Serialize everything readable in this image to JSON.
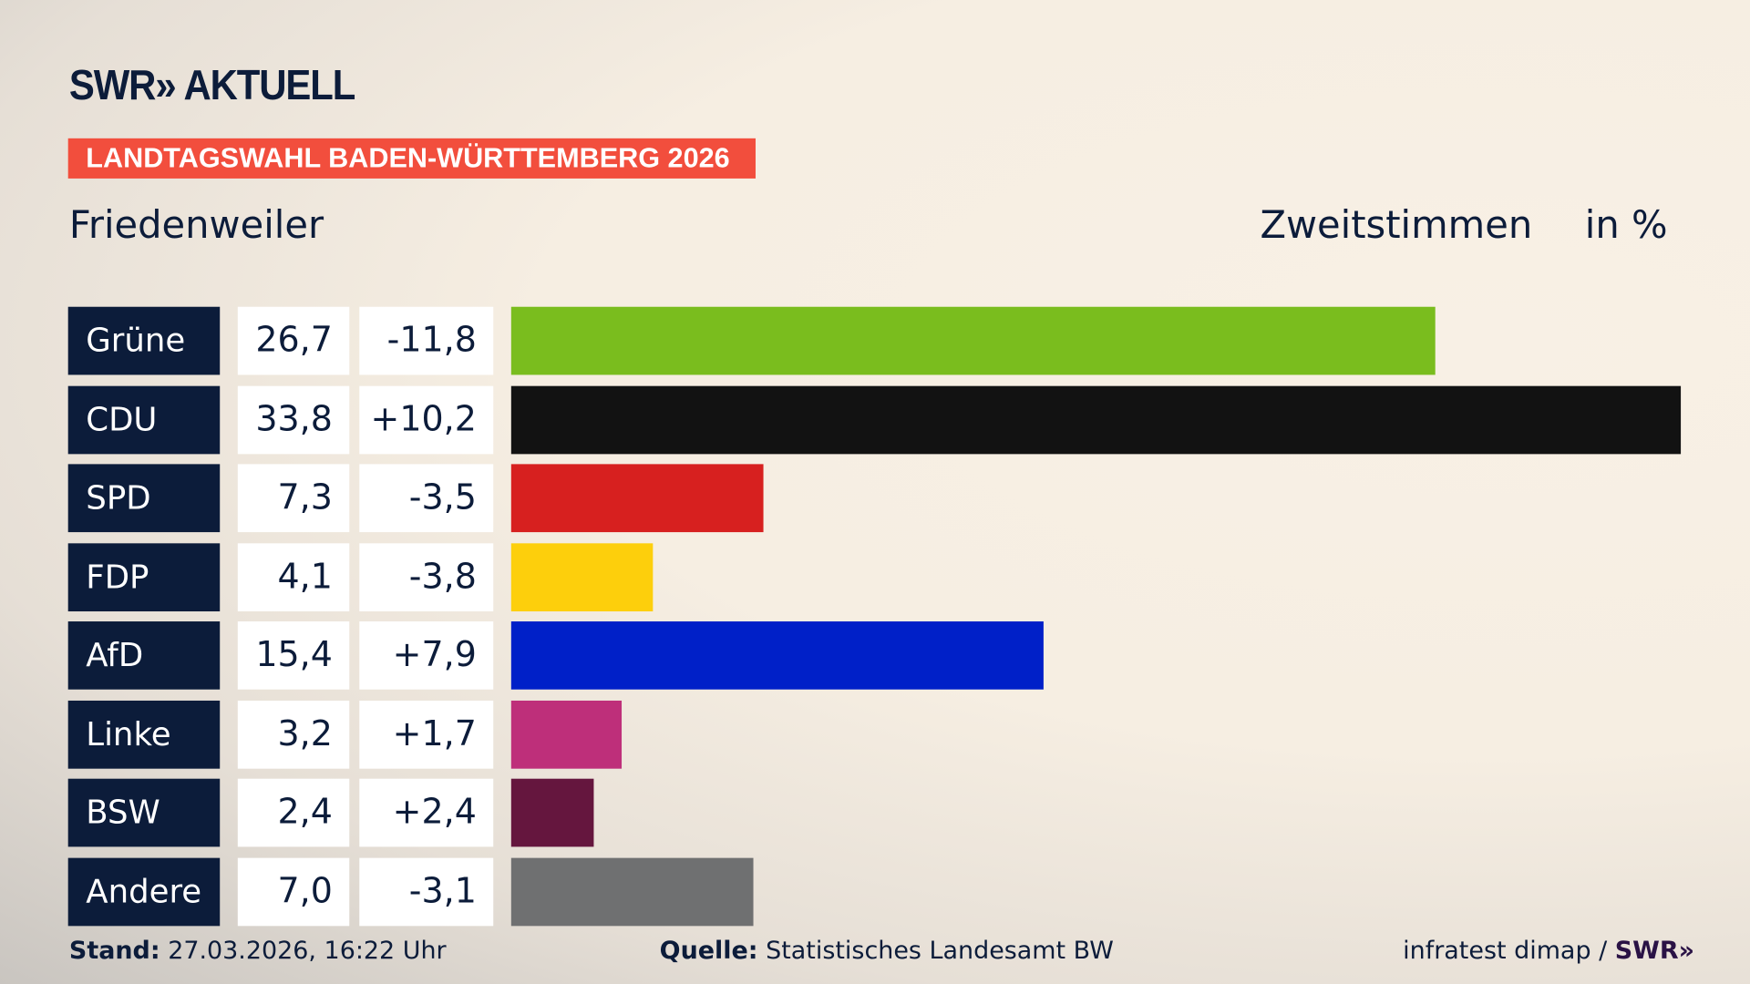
{
  "header": {
    "logo": "SWR» AKTUELL",
    "banner": "LANDTAGSWAHL BADEN-WÜRTTEMBERG 2026",
    "place": "Friedenweiler",
    "vote_type": "Zweitstimmen",
    "unit": "in %"
  },
  "chart_data": {
    "type": "bar",
    "orientation": "horizontal",
    "categories": [
      "Grüne",
      "CDU",
      "SPD",
      "FDP",
      "AfD",
      "Linke",
      "BSW",
      "Andere"
    ],
    "values": [
      26.7,
      33.8,
      7.3,
      4.1,
      15.4,
      3.2,
      2.4,
      7.0
    ],
    "value_labels": [
      "26,7",
      "33,8",
      "7,3",
      "4,1",
      "15,4",
      "3,2",
      "2,4",
      "7,0"
    ],
    "diff_labels": [
      "-11,8",
      "+10,2",
      "-3,5",
      "-3,8",
      "+7,9",
      "+1,7",
      "+2,4",
      "-3,1"
    ],
    "diffs": [
      -11.8,
      10.2,
      -3.5,
      -3.8,
      7.9,
      1.7,
      2.4,
      -3.1
    ],
    "colors": [
      "#7abd1e",
      "#121212",
      "#d7201f",
      "#fdcf0c",
      "#0020c8",
      "#be2f7a",
      "#65163e",
      "#6f7071"
    ],
    "xlim": [
      0,
      33.8
    ],
    "grid": false
  },
  "footer": {
    "stand_label": "Stand:",
    "stand_value": "27.03.2026, 16:22 Uhr",
    "source_label": "Quelle:",
    "source_value": "Statistisches Landesamt BW",
    "credit": "infratest dimap /",
    "credit_logo": "SWR»"
  }
}
